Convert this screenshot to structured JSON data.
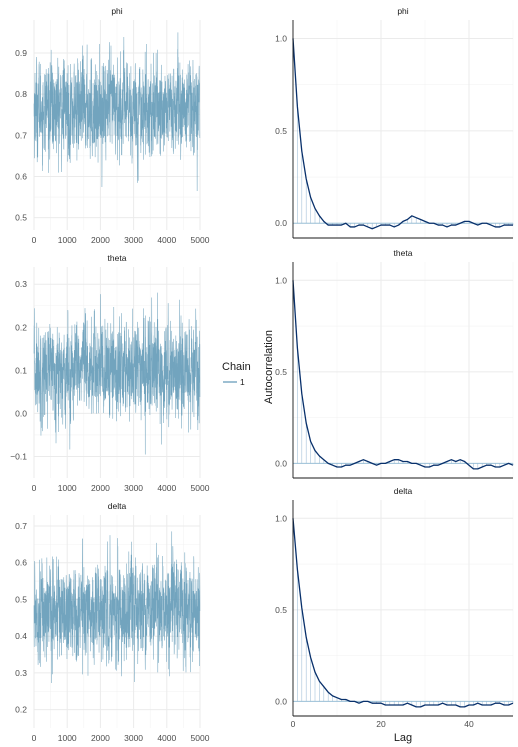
{
  "colors": {
    "trace": "#6a9fbb",
    "acf_line": "#08306b",
    "acf_bar": "#8fb3cf",
    "zero_line": "#9ec3da"
  },
  "legend": {
    "title": "Chain",
    "items": [
      "1"
    ]
  },
  "axis_labels": {
    "acf_y": "Autocorrelation",
    "acf_x": "Lag"
  },
  "chart_data": [
    {
      "type": "line",
      "panel": "trace",
      "title": "phi",
      "x_range": [
        0,
        5000
      ],
      "xticks": [
        0,
        1000,
        2000,
        3000,
        4000,
        5000
      ],
      "ylim": [
        0.47,
        0.98
      ],
      "yticks": [
        0.5,
        0.6,
        0.7,
        0.8,
        0.9
      ],
      "mean": 0.765,
      "sd": 0.058,
      "min": 0.48,
      "max": 0.95,
      "n": 5000
    },
    {
      "type": "line",
      "panel": "trace",
      "title": "theta",
      "x_range": [
        0,
        5000
      ],
      "xticks": [
        0,
        1000,
        2000,
        3000,
        4000,
        5000
      ],
      "ylim": [
        -0.15,
        0.34
      ],
      "yticks": [
        -0.1,
        0.0,
        0.1,
        0.2,
        0.3
      ],
      "mean": 0.1,
      "sd": 0.055,
      "min": -0.13,
      "max": 0.33,
      "n": 5000
    },
    {
      "type": "line",
      "panel": "trace",
      "title": "delta",
      "x_range": [
        0,
        5000
      ],
      "xticks": [
        0,
        1000,
        2000,
        3000,
        4000,
        5000
      ],
      "ylim": [
        0.15,
        0.73
      ],
      "yticks": [
        0.2,
        0.3,
        0.4,
        0.5,
        0.6,
        0.7
      ],
      "mean": 0.47,
      "sd": 0.065,
      "min": 0.17,
      "max": 0.71,
      "n": 5000
    },
    {
      "type": "line",
      "panel": "acf",
      "title": "phi",
      "xlim": [
        0,
        50
      ],
      "xticks": [
        0,
        20,
        40
      ],
      "ylim": [
        -0.08,
        1.1
      ],
      "yticks": [
        0.0,
        0.5,
        1.0
      ],
      "x": [
        0,
        1,
        2,
        3,
        4,
        5,
        6,
        7,
        8,
        9,
        10,
        11,
        12,
        13,
        14,
        15,
        16,
        17,
        18,
        19,
        20,
        21,
        22,
        23,
        24,
        25,
        26,
        27,
        28,
        29,
        30,
        31,
        32,
        33,
        34,
        35,
        36,
        37,
        38,
        39,
        40,
        41,
        42,
        43,
        44,
        45,
        46,
        47,
        48,
        49,
        50
      ],
      "y": [
        1.0,
        0.63,
        0.39,
        0.24,
        0.14,
        0.08,
        0.04,
        0.01,
        -0.01,
        -0.01,
        -0.01,
        -0.01,
        0.0,
        -0.02,
        -0.02,
        -0.01,
        -0.01,
        -0.02,
        -0.03,
        -0.02,
        -0.01,
        -0.01,
        -0.01,
        -0.02,
        -0.01,
        0.01,
        0.02,
        0.04,
        0.03,
        0.02,
        0.01,
        0.0,
        0.0,
        -0.01,
        -0.01,
        -0.02,
        -0.01,
        -0.01,
        0.0,
        0.01,
        0.01,
        0.0,
        -0.01,
        0.0,
        0.0,
        -0.01,
        -0.02,
        -0.02,
        -0.01,
        -0.01,
        -0.01
      ]
    },
    {
      "type": "line",
      "panel": "acf",
      "title": "theta",
      "xlim": [
        0,
        50
      ],
      "xticks": [
        0,
        20,
        40
      ],
      "ylim": [
        -0.08,
        1.1
      ],
      "yticks": [
        0.0,
        0.5,
        1.0
      ],
      "x": [
        0,
        1,
        2,
        3,
        4,
        5,
        6,
        7,
        8,
        9,
        10,
        11,
        12,
        13,
        14,
        15,
        16,
        17,
        18,
        19,
        20,
        21,
        22,
        23,
        24,
        25,
        26,
        27,
        28,
        29,
        30,
        31,
        32,
        33,
        34,
        35,
        36,
        37,
        38,
        39,
        40,
        41,
        42,
        43,
        44,
        45,
        46,
        47,
        48,
        49,
        50
      ],
      "y": [
        1.0,
        0.63,
        0.38,
        0.22,
        0.12,
        0.07,
        0.04,
        0.02,
        0.0,
        -0.01,
        -0.02,
        -0.02,
        -0.01,
        -0.01,
        0.0,
        0.01,
        0.02,
        0.01,
        0.0,
        -0.01,
        0.0,
        0.0,
        0.01,
        0.02,
        0.02,
        0.01,
        0.01,
        0.0,
        0.0,
        -0.01,
        -0.02,
        -0.02,
        -0.01,
        -0.01,
        0.0,
        0.01,
        0.02,
        0.01,
        0.02,
        0.01,
        -0.01,
        -0.03,
        -0.03,
        -0.02,
        -0.01,
        -0.01,
        -0.02,
        -0.02,
        -0.01,
        0.0,
        -0.01
      ]
    },
    {
      "type": "line",
      "panel": "acf",
      "title": "delta",
      "xlim": [
        0,
        50
      ],
      "xticks": [
        0,
        20,
        40
      ],
      "ylim": [
        -0.08,
        1.1
      ],
      "yticks": [
        0.0,
        0.5,
        1.0
      ],
      "x": [
        0,
        1,
        2,
        3,
        4,
        5,
        6,
        7,
        8,
        9,
        10,
        11,
        12,
        13,
        14,
        15,
        16,
        17,
        18,
        19,
        20,
        21,
        22,
        23,
        24,
        25,
        26,
        27,
        28,
        29,
        30,
        31,
        32,
        33,
        34,
        35,
        36,
        37,
        38,
        39,
        40,
        41,
        42,
        43,
        44,
        45,
        46,
        47,
        48,
        49,
        50
      ],
      "y": [
        1.0,
        0.72,
        0.51,
        0.35,
        0.24,
        0.16,
        0.11,
        0.08,
        0.05,
        0.03,
        0.02,
        0.01,
        0.01,
        0.0,
        0.0,
        -0.01,
        0.0,
        0.0,
        -0.01,
        -0.01,
        -0.01,
        -0.02,
        -0.02,
        -0.02,
        -0.02,
        -0.02,
        -0.01,
        -0.02,
        -0.03,
        -0.03,
        -0.02,
        -0.02,
        -0.02,
        -0.02,
        -0.01,
        -0.02,
        -0.02,
        -0.02,
        -0.03,
        -0.03,
        -0.02,
        -0.02,
        -0.01,
        -0.02,
        -0.02,
        -0.02,
        -0.01,
        -0.01,
        -0.02,
        -0.02,
        -0.01
      ]
    }
  ]
}
